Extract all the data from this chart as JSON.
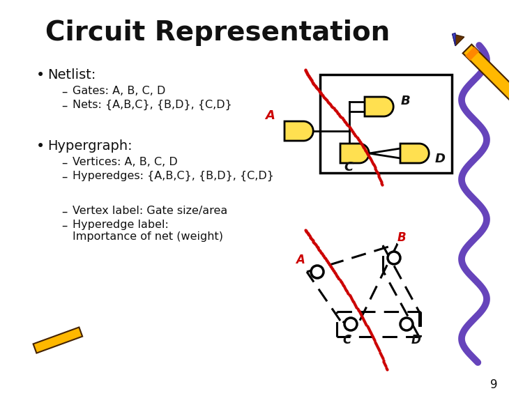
{
  "title": "Circuit Representation",
  "title_fontsize": 28,
  "bg_color": "#FFFFFF",
  "bullet1": "Netlist:",
  "sub1a": "Gates: A, B, C, D",
  "sub1b": "Nets: {A,B,C}, {B,D}, {C,D}",
  "bullet2": "Hypergraph:",
  "sub2a": "Vertices: A, B, C, D",
  "sub2b": "Hyperedges: {A,B,C}, {B,D}, {C,D}",
  "sub2c": "Vertex label: Gate size/area",
  "sub2d": "Hyperedge label:",
  "sub2e": "Importance of net (weight)",
  "page_num": "9",
  "gate_color": "#FFE050",
  "gate_outline": "#000000",
  "net_color": "#CC0000",
  "text_color": "#111111",
  "purple_color": "#6644BB",
  "crayon_yellow": "#FFB800",
  "crayon_orange": "#FF8800",
  "crayon_dark": "#442200"
}
